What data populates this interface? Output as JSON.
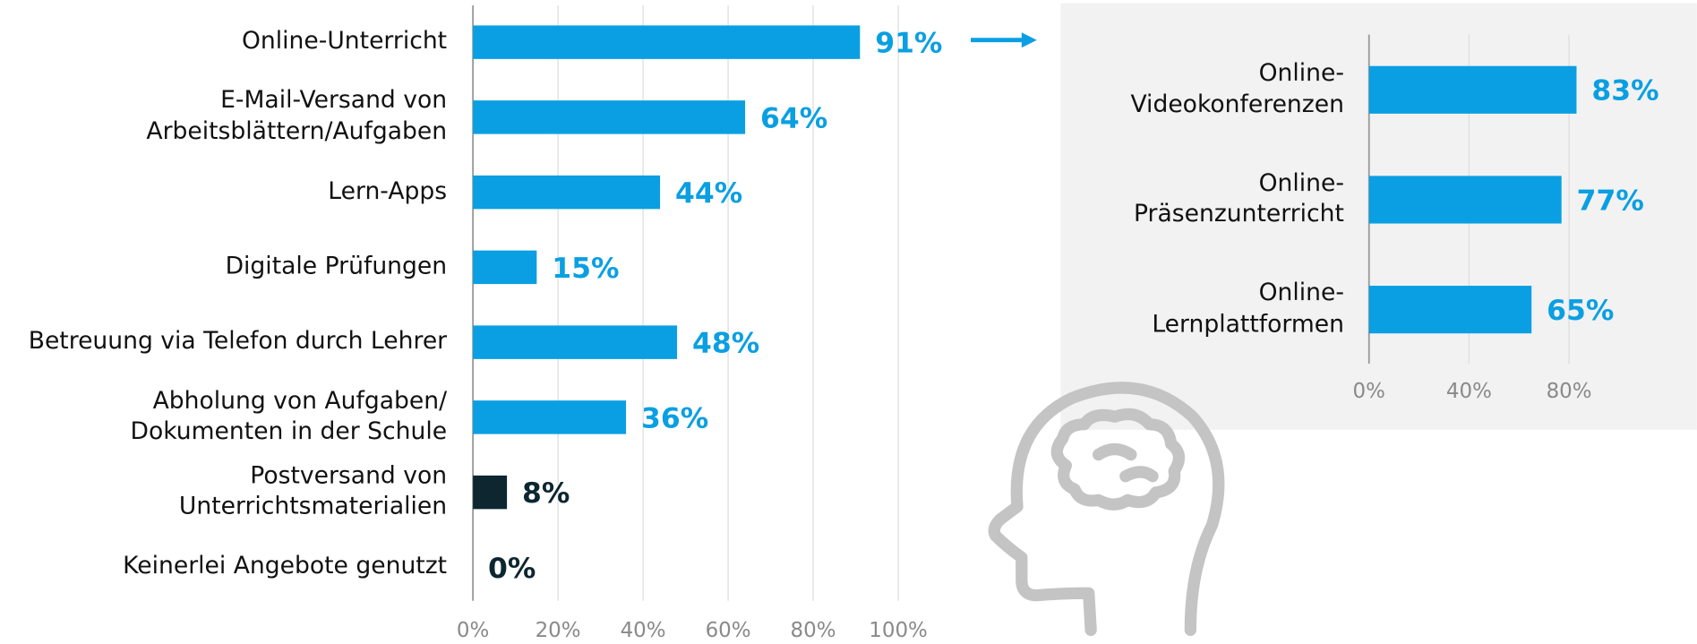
{
  "chart_data": [
    {
      "type": "bar",
      "orientation": "horizontal",
      "categories": [
        "Online-Unterricht",
        "E-Mail-Versand von\nArbeitsblättern/Aufgaben",
        "Lern-Apps",
        "Digitale Prüfungen",
        "Betreuung via Telefon durch Lehrer",
        "Abholung von Aufgaben/\nDokumenten in der Schule",
        "Postversand von\nUnterrichtsmaterialien",
        "Keinerlei Angebote genutzt"
      ],
      "values": [
        91,
        64,
        44,
        15,
        48,
        36,
        8,
        0
      ],
      "value_labels": [
        "91%",
        "64%",
        "44%",
        "15%",
        "48%",
        "36%",
        "8%",
        "0%"
      ],
      "colors": [
        "#0a9fe2",
        "#0a9fe2",
        "#0a9fe2",
        "#0a9fe2",
        "#0a9fe2",
        "#0a9fe2",
        "#0d2630",
        "#0d2630"
      ],
      "xlim": [
        0,
        100
      ],
      "xticks": [
        {
          "value": 0,
          "label": "0%"
        },
        {
          "value": 20,
          "label": "20%"
        },
        {
          "value": 40,
          "label": "40%"
        },
        {
          "value": 60,
          "label": "60%"
        },
        {
          "value": 80,
          "label": "80%"
        },
        {
          "value": 100,
          "label": "100%"
        }
      ],
      "grid": true
    },
    {
      "type": "bar",
      "orientation": "horizontal",
      "categories": [
        "Online-\nVideokonferenzen",
        "Online-\nPräsenzunterricht",
        "Online-\nLernplattformen"
      ],
      "values": [
        83,
        77,
        65
      ],
      "value_labels": [
        "83%",
        "77%",
        "65%"
      ],
      "colors": [
        "#0a9fe2",
        "#0a9fe2",
        "#0a9fe2"
      ],
      "xlim": [
        0,
        100
      ],
      "xticks": [
        {
          "value": 0,
          "label": "0%"
        },
        {
          "value": 40,
          "label": "40%"
        },
        {
          "value": 80,
          "label": "80%"
        }
      ],
      "grid": true
    }
  ]
}
